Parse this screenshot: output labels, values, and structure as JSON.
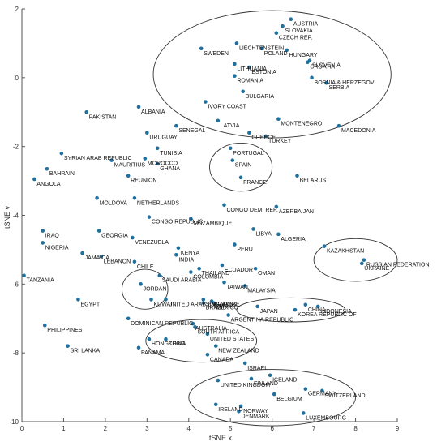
{
  "chart_data": {
    "type": "scatter",
    "title": "",
    "xlabel": "tSNE x",
    "ylabel": "tSNE y",
    "xlim": [
      0,
      9
    ],
    "ylim": [
      -10,
      2
    ],
    "xticks": [
      "0",
      "1",
      "2",
      "3",
      "4",
      "5",
      "6",
      "7",
      "8",
      "9"
    ],
    "yticks": [
      "2",
      "0",
      "-2",
      "-4",
      "-6",
      "-8",
      "-10"
    ],
    "grid": false,
    "marker_color": "#1f6f9f",
    "points": [
      {
        "label": "AUSTRIA",
        "x": 6.45,
        "y": 1.7
      },
      {
        "label": "SLOVAKIA",
        "x": 6.25,
        "y": 1.5
      },
      {
        "label": "CZECH REP.",
        "x": 6.1,
        "y": 1.3
      },
      {
        "label": "LIECHTENSTEIN",
        "x": 5.15,
        "y": 1.0
      },
      {
        "label": "POLAND",
        "x": 5.75,
        "y": 0.85
      },
      {
        "label": "HUNGARY",
        "x": 6.35,
        "y": 0.8
      },
      {
        "label": "SWEDEN",
        "x": 4.3,
        "y": 0.85
      },
      {
        "label": "SLOVENIA",
        "x": 6.9,
        "y": 0.5
      },
      {
        "label": "CROATIA",
        "x": 6.85,
        "y": 0.45
      },
      {
        "label": "LITHUANIA",
        "x": 5.1,
        "y": 0.4
      },
      {
        "label": "ESTONIA",
        "x": 5.45,
        "y": 0.3
      },
      {
        "label": "ROMANIA",
        "x": 5.1,
        "y": 0.05
      },
      {
        "label": "BOSNIA & HERZEGOV.",
        "x": 6.95,
        "y": 0.0
      },
      {
        "label": "SERBIA",
        "x": 7.3,
        "y": -0.15
      },
      {
        "label": "BULGARIA",
        "x": 5.3,
        "y": -0.4
      },
      {
        "label": "IVORY COAST",
        "x": 4.4,
        "y": -0.7
      },
      {
        "label": "ALBANIA",
        "x": 2.8,
        "y": -0.85
      },
      {
        "label": "PAKISTAN",
        "x": 1.55,
        "y": -1.0
      },
      {
        "label": "MONTENEGRO",
        "x": 6.15,
        "y": -1.2
      },
      {
        "label": "LATVIA",
        "x": 4.7,
        "y": -1.25
      },
      {
        "label": "MACEDONIA",
        "x": 7.6,
        "y": -1.4
      },
      {
        "label": "SENEGAL",
        "x": 3.7,
        "y": -1.4
      },
      {
        "label": "URUGUAY",
        "x": 3.0,
        "y": -1.6
      },
      {
        "label": "GREECE",
        "x": 5.45,
        "y": -1.6
      },
      {
        "label": "TURKEY",
        "x": 5.85,
        "y": -1.7
      },
      {
        "label": "PORTUGAL",
        "x": 5.0,
        "y": -2.05
      },
      {
        "label": "TUNISIA",
        "x": 3.25,
        "y": -2.05
      },
      {
        "label": "SYRIAN ARAB REPUBLIC",
        "x": 0.95,
        "y": -2.2
      },
      {
        "label": "MAURITIUS",
        "x": 2.15,
        "y": -2.4
      },
      {
        "label": "MOROCCO",
        "x": 2.95,
        "y": -2.35
      },
      {
        "label": "GHANA",
        "x": 3.25,
        "y": -2.5
      },
      {
        "label": "SPAIN",
        "x": 5.05,
        "y": -2.4
      },
      {
        "label": "BAHRAIN",
        "x": 0.6,
        "y": -2.65
      },
      {
        "label": "REUNION",
        "x": 2.55,
        "y": -2.85
      },
      {
        "label": "BELARUS",
        "x": 6.6,
        "y": -2.85
      },
      {
        "label": "FRANCE",
        "x": 5.25,
        "y": -2.9
      },
      {
        "label": "ANGOLA",
        "x": 0.3,
        "y": -2.95
      },
      {
        "label": "MOLDOVA",
        "x": 1.8,
        "y": -3.5
      },
      {
        "label": "NETHERLANDS",
        "x": 2.7,
        "y": -3.5
      },
      {
        "label": "CONGO DEM. REP.",
        "x": 4.85,
        "y": -3.7
      },
      {
        "label": "AZERBAIJAN",
        "x": 6.1,
        "y": -3.75
      },
      {
        "label": "CONGO REPUBLIC",
        "x": 3.05,
        "y": -4.05
      },
      {
        "label": "MOZAMBIQUE",
        "x": 4.05,
        "y": -4.1
      },
      {
        "label": "IRAQ",
        "x": 0.5,
        "y": -4.45
      },
      {
        "label": "GEORGIA",
        "x": 1.85,
        "y": -4.45
      },
      {
        "label": "LIBYA",
        "x": 5.55,
        "y": -4.4
      },
      {
        "label": "ALGERIA",
        "x": 6.15,
        "y": -4.55
      },
      {
        "label": "VENEZUELA",
        "x": 2.65,
        "y": -4.65
      },
      {
        "label": "NIGERIA",
        "x": 0.5,
        "y": -4.8
      },
      {
        "label": "PERU",
        "x": 5.1,
        "y": -4.85
      },
      {
        "label": "KAZAKHSTAN",
        "x": 7.25,
        "y": -4.9
      },
      {
        "label": "KENYA",
        "x": 3.75,
        "y": -4.95
      },
      {
        "label": "JAMAICA",
        "x": 1.45,
        "y": -5.1
      },
      {
        "label": "INDIA",
        "x": 3.7,
        "y": -5.15
      },
      {
        "label": "LEBANON",
        "x": 1.9,
        "y": -5.2
      },
      {
        "label": "RUSSIAN FEDERATION",
        "x": 8.2,
        "y": -5.3
      },
      {
        "label": "UKRAINE",
        "x": 8.15,
        "y": -5.4
      },
      {
        "label": "CHILE",
        "x": 2.7,
        "y": -5.35
      },
      {
        "label": "ECUADOR",
        "x": 4.8,
        "y": -5.45
      },
      {
        "label": "OMAN",
        "x": 5.6,
        "y": -5.55
      },
      {
        "label": "THAILAND",
        "x": 4.25,
        "y": -5.55
      },
      {
        "label": "COLOMBIA",
        "x": 4.05,
        "y": -5.65
      },
      {
        "label": "TANZANIA",
        "x": 0.05,
        "y": -5.75
      },
      {
        "label": "SAUDI ARABIA",
        "x": 3.3,
        "y": -5.75
      },
      {
        "label": "TAIWAN",
        "x": 4.85,
        "y": -5.95
      },
      {
        "label": "JORDAN",
        "x": 2.85,
        "y": -6.0
      },
      {
        "label": "MALAYSIA",
        "x": 5.35,
        "y": -6.05
      },
      {
        "label": "EGYPT",
        "x": 1.35,
        "y": -6.45
      },
      {
        "label": "KUWAIT",
        "x": 3.1,
        "y": -6.45
      },
      {
        "label": "UNITED ARAB EMIRATES",
        "x": 3.45,
        "y": -6.45
      },
      {
        "label": "SINGAPORE",
        "x": 4.35,
        "y": -6.45
      },
      {
        "label": "QATAR",
        "x": 4.55,
        "y": -6.5
      },
      {
        "label": "BRAZIL",
        "x": 4.35,
        "y": -6.55
      },
      {
        "label": "MEXICO",
        "x": 4.6,
        "y": -6.55
      },
      {
        "label": "JAPAN",
        "x": 5.65,
        "y": -6.65
      },
      {
        "label": "CHINA",
        "x": 6.8,
        "y": -6.6
      },
      {
        "label": "INDONESIA",
        "x": 7.1,
        "y": -6.65
      },
      {
        "label": "KOREA REPUBLIC OF",
        "x": 6.55,
        "y": -6.75
      },
      {
        "label": "ARGENTINA REPUBLIC",
        "x": 4.95,
        "y": -6.9
      },
      {
        "label": "DOMINICAN REPUBLIC",
        "x": 2.55,
        "y": -7.0
      },
      {
        "label": "PHILIPPINES",
        "x": 0.55,
        "y": -7.2
      },
      {
        "label": "AUSTRALIA",
        "x": 4.1,
        "y": -7.15
      },
      {
        "label": "SOUTH AFRICA",
        "x": 4.15,
        "y": -7.25
      },
      {
        "label": "UNITED STATES",
        "x": 4.45,
        "y": -7.45
      },
      {
        "label": "HONGKONG",
        "x": 3.05,
        "y": -7.6
      },
      {
        "label": "CHINA",
        "x": 3.45,
        "y": -7.6
      },
      {
        "label": "NEW ZEALAND",
        "x": 4.65,
        "y": -7.8
      },
      {
        "label": "SRI LANKA",
        "x": 1.1,
        "y": -7.8
      },
      {
        "label": "PANAMA",
        "x": 2.8,
        "y": -7.85
      },
      {
        "label": "CANADA",
        "x": 4.45,
        "y": -8.05
      },
      {
        "label": "ISRAEL",
        "x": 5.35,
        "y": -8.3
      },
      {
        "label": "ICELAND",
        "x": 5.95,
        "y": -8.65
      },
      {
        "label": "FINLAND",
        "x": 5.5,
        "y": -8.75
      },
      {
        "label": "UNITED KINGDOM",
        "x": 4.7,
        "y": -8.8
      },
      {
        "label": "GERMANY",
        "x": 6.8,
        "y": -9.05
      },
      {
        "label": "SWITZERLAND",
        "x": 7.2,
        "y": -9.1
      },
      {
        "label": "BELGIUM",
        "x": 6.05,
        "y": -9.2
      },
      {
        "label": "IRELAND",
        "x": 4.65,
        "y": -9.5
      },
      {
        "label": "NORWAY",
        "x": 5.25,
        "y": -9.55
      },
      {
        "label": "LUXEMBOURG",
        "x": 6.75,
        "y": -9.75
      },
      {
        "label": "DENMARK",
        "x": 5.2,
        "y": -9.7
      }
    ],
    "clusters": [
      {
        "cx": 6.0,
        "cy": 0.1,
        "rx": 2.85,
        "ry": 1.85
      },
      {
        "cx": 5.25,
        "cy": -2.6,
        "rx": 0.75,
        "ry": 0.7
      },
      {
        "cx": 8.0,
        "cy": -5.3,
        "rx": 1.0,
        "ry": 0.62
      },
      {
        "cx": 2.95,
        "cy": -6.15,
        "rx": 0.55,
        "ry": 0.58
      },
      {
        "cx": 6.45,
        "cy": -6.75,
        "rx": 1.3,
        "ry": 0.35
      },
      {
        "cx": 4.3,
        "cy": -7.65,
        "rx": 1.33,
        "ry": 0.62
      },
      {
        "cx": 6.0,
        "cy": -9.3,
        "rx": 2.0,
        "ry": 0.82
      }
    ]
  }
}
